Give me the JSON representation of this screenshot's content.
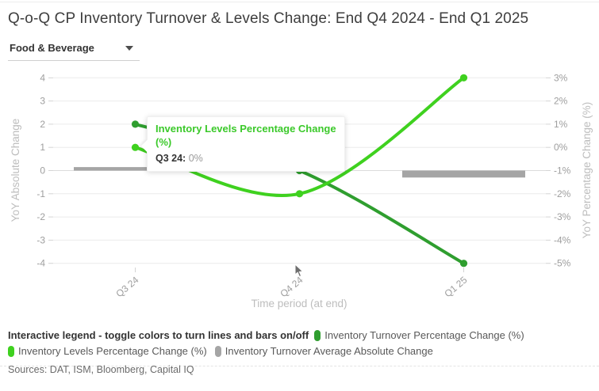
{
  "filter": {
    "selected": "Food & Beverage"
  },
  "tooltip": {
    "title": "Inventory Levels Percentage Change (%)",
    "label": "Q3 24:",
    "value": "0%"
  },
  "legend": {
    "header": "Interactive legend - toggle colors to turn lines and bars on/off",
    "items": [
      {
        "label": "Inventory Turnover Percentage Change (%)",
        "color": "#2f9e2f"
      },
      {
        "label": "Inventory Levels Percentage Change (%)",
        "color": "#3fd11f"
      },
      {
        "label": "Inventory Turnover Average Absolute Change",
        "color": "#a5a5a5"
      }
    ]
  },
  "sources": "Sources: DAT, ISM, Bloomberg, Capital IQ",
  "chart_data": {
    "type": "line+bar",
    "title": "Q-o-Q CP Inventory Turnover & Levels Change: End Q4 2024 - End Q1 2025",
    "categories": [
      "Q3 24",
      "Q4 24",
      "Q1 25"
    ],
    "series": [
      {
        "name": "Inventory Turnover Percentage Change (%)",
        "type": "line",
        "axis": "right",
        "color": "#2f9e2f",
        "values": [
          1,
          -1,
          -5
        ]
      },
      {
        "name": "Inventory Levels Percentage Change (%)",
        "type": "line",
        "axis": "right",
        "color": "#3fd11f",
        "values": [
          0,
          -2,
          3
        ]
      },
      {
        "name": "Inventory Turnover Average Absolute Change",
        "type": "bar",
        "axis": "left",
        "color": "#a5a5a5",
        "values": [
          0.15,
          0,
          -0.3
        ]
      }
    ],
    "xlabel": "Time period (at end)",
    "ylabel_left": "YoY Absolute Change",
    "ylabel_right": "YoY Percentage Change (%)",
    "ylim_left": [
      -4,
      4
    ],
    "ylim_right": [
      -5,
      3
    ],
    "left_ticks": [
      "4",
      "3",
      "2",
      "1",
      "0",
      "-1",
      "-2",
      "-3",
      "-4"
    ],
    "right_ticks": [
      "3%",
      "2%",
      "1%",
      "0%",
      "-1%",
      "-2%",
      "-3%",
      "-4%",
      "-5%"
    ],
    "grid": true,
    "legend_position": "bottom"
  }
}
